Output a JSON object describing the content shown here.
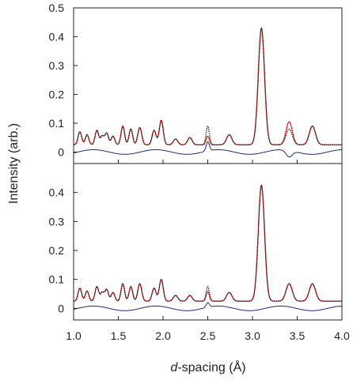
{
  "chart_data": [
    {
      "panel": "top",
      "type": "line",
      "xlim": [
        1.0,
        4.0
      ],
      "ylim": [
        -0.04,
        0.5
      ],
      "yticks": [
        0,
        0.1,
        0.2,
        0.3,
        0.4,
        0.5
      ],
      "ytick_labels": [
        "0",
        "0.1",
        "0.2",
        "0.3",
        "0.4",
        "0.5"
      ],
      "grid": false,
      "series_styles": [
        {
          "key": "observed",
          "color": "#111111",
          "style": "dotted"
        },
        {
          "key": "calculated",
          "color": "#e0201a",
          "style": "solid"
        },
        {
          "key": "difference",
          "color": "#1f2a80",
          "style": "solid"
        }
      ],
      "peaks": [
        {
          "x": 1.07,
          "h": 0.045,
          "w": 0.02
        },
        {
          "x": 1.15,
          "h": 0.035,
          "w": 0.02
        },
        {
          "x": 1.26,
          "h": 0.05,
          "w": 0.02
        },
        {
          "x": 1.32,
          "h": 0.03,
          "w": 0.02
        },
        {
          "x": 1.37,
          "h": 0.04,
          "w": 0.02
        },
        {
          "x": 1.44,
          "h": 0.03,
          "w": 0.02
        },
        {
          "x": 1.55,
          "h": 0.065,
          "w": 0.02
        },
        {
          "x": 1.64,
          "h": 0.055,
          "w": 0.02
        },
        {
          "x": 1.74,
          "h": 0.06,
          "w": 0.022
        },
        {
          "x": 1.9,
          "h": 0.05,
          "w": 0.022
        },
        {
          "x": 1.98,
          "h": 0.085,
          "w": 0.022
        },
        {
          "x": 2.14,
          "h": 0.02,
          "w": 0.025
        },
        {
          "x": 2.3,
          "h": 0.025,
          "w": 0.025
        },
        {
          "x": 2.5,
          "h": 0.04,
          "w": 0.018
        },
        {
          "x": 2.74,
          "h": 0.035,
          "w": 0.03
        },
        {
          "x": 3.1,
          "h": 0.405,
          "w": 0.035
        },
        {
          "x": 3.41,
          "h": 0.055,
          "w": 0.035
        },
        {
          "x": 3.67,
          "h": 0.065,
          "w": 0.035
        }
      ],
      "calc_overrides": [
        {
          "x": 2.5,
          "h": 0.03
        },
        {
          "x": 3.41,
          "h": 0.08
        }
      ],
      "obs_overrides": [
        {
          "x": 2.5,
          "h": 0.065
        }
      ],
      "background": [
        {
          "x": 1.0,
          "y": 0.025
        },
        {
          "x": 4.0,
          "y": 0.025
        }
      ]
    },
    {
      "panel": "bottom",
      "type": "line",
      "xlim": [
        1.0,
        4.0
      ],
      "ylim": [
        -0.04,
        0.5
      ],
      "yticks": [
        0,
        0.1,
        0.2,
        0.3,
        0.4
      ],
      "ytick_labels": [
        "0",
        "0.1",
        "0.2",
        "0.3",
        "0.4"
      ],
      "xticks": [
        1.0,
        1.5,
        2.0,
        2.5,
        3.0,
        3.5,
        4.0
      ],
      "xtick_labels": [
        "1.0",
        "1.5",
        "2.0",
        "2.5",
        "3.0",
        "3.5",
        "4.0"
      ],
      "grid": false,
      "series_styles": [
        {
          "key": "observed",
          "color": "#111111",
          "style": "dotted"
        },
        {
          "key": "calculated",
          "color": "#e0201a",
          "style": "solid"
        },
        {
          "key": "difference",
          "color": "#1f2a80",
          "style": "solid"
        }
      ],
      "peaks": [
        {
          "x": 1.07,
          "h": 0.045,
          "w": 0.02
        },
        {
          "x": 1.15,
          "h": 0.035,
          "w": 0.02
        },
        {
          "x": 1.26,
          "h": 0.05,
          "w": 0.02
        },
        {
          "x": 1.32,
          "h": 0.03,
          "w": 0.02
        },
        {
          "x": 1.37,
          "h": 0.04,
          "w": 0.02
        },
        {
          "x": 1.44,
          "h": 0.03,
          "w": 0.02
        },
        {
          "x": 1.55,
          "h": 0.06,
          "w": 0.02
        },
        {
          "x": 1.64,
          "h": 0.05,
          "w": 0.02
        },
        {
          "x": 1.74,
          "h": 0.06,
          "w": 0.022
        },
        {
          "x": 1.9,
          "h": 0.045,
          "w": 0.022
        },
        {
          "x": 1.98,
          "h": 0.075,
          "w": 0.022
        },
        {
          "x": 2.14,
          "h": 0.02,
          "w": 0.025
        },
        {
          "x": 2.3,
          "h": 0.02,
          "w": 0.025
        },
        {
          "x": 2.5,
          "h": 0.04,
          "w": 0.018
        },
        {
          "x": 2.74,
          "h": 0.03,
          "w": 0.03
        },
        {
          "x": 3.1,
          "h": 0.4,
          "w": 0.035
        },
        {
          "x": 3.41,
          "h": 0.06,
          "w": 0.035
        },
        {
          "x": 3.67,
          "h": 0.06,
          "w": 0.035
        }
      ],
      "calc_overrides": [
        {
          "x": 2.5,
          "h": 0.033
        }
      ],
      "obs_overrides": [
        {
          "x": 2.5,
          "h": 0.05
        }
      ],
      "background": [
        {
          "x": 1.0,
          "y": 0.025
        },
        {
          "x": 4.0,
          "y": 0.025
        }
      ]
    }
  ],
  "axes": {
    "ylabel": "Intensity (arb.)",
    "xlabel_italic": "d",
    "xlabel_rest": "-spacing (Å)"
  }
}
